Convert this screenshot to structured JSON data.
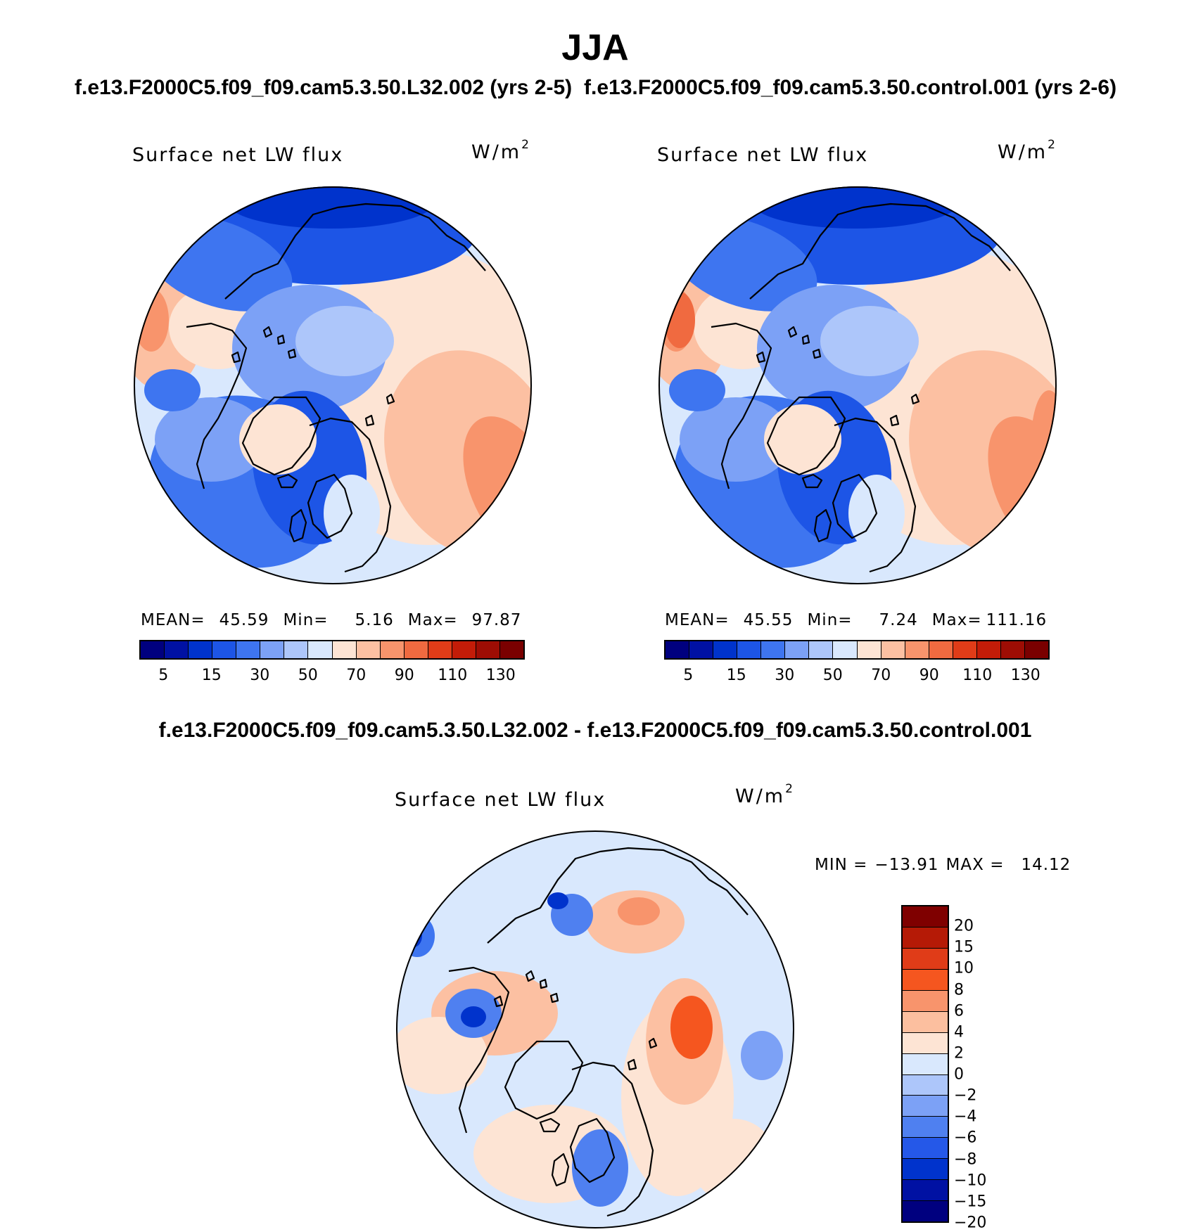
{
  "title": "JJA",
  "case_left_title": "f.e13.F2000C5.f09_f09.cam5.3.50.L32.002 (yrs 2-5)",
  "case_right_title": "f.e13.F2000C5.f09_f09.cam5.3.50.control.001 (yrs 2-6)",
  "diff_title": "f.e13.F2000C5.f09_f09.cam5.3.50.L32.002 - f.e13.F2000C5.f09_f09.cam5.3.50.control.001",
  "panels": {
    "left": {
      "variable": "Surface net LW flux",
      "units": "W/m",
      "units_exp": "2",
      "mean_label": "MEAN=",
      "mean": "45.59",
      "min_label": "Min=",
      "min": "5.16",
      "max_label": "Max=",
      "max": "97.87"
    },
    "right": {
      "variable": "Surface net LW flux",
      "units": "W/m",
      "units_exp": "2",
      "mean_label": "MEAN=",
      "mean": "45.55",
      "min_label": "Min=",
      "min": "7.24",
      "max_label": "Max=",
      "max": "111.16"
    },
    "diff": {
      "variable": "Surface net LW flux",
      "units": "W/m",
      "units_exp": "2",
      "min_label": "MIN =",
      "min": "−13.91",
      "max_label": "MAX =",
      "max": "14.12"
    }
  },
  "chart_data": [
    {
      "type": "heatmap",
      "title": "Surface net LW flux",
      "subtitle": "f.e13.F2000C5.f09_f09.cam5.3.50.L32.002 (yrs 2-5)",
      "units": "W/m2",
      "projection": "north polar stereographic",
      "mean": 45.59,
      "min": 5.16,
      "max": 97.87,
      "colorbar_labels": [
        "5",
        "15",
        "30",
        "50",
        "70",
        "90",
        "110",
        "130"
      ],
      "colorbar_colors": [
        "#00007f",
        "#0011a3",
        "#0033cc",
        "#1d55e6",
        "#3e75f0",
        "#7ca1f6",
        "#adc6fa",
        "#d9e8fd",
        "#fde4d4",
        "#fcc0a2",
        "#f8946c",
        "#f06a40",
        "#e03c18",
        "#c31c08",
        "#9e0d04",
        "#7a0000"
      ]
    },
    {
      "type": "heatmap",
      "title": "Surface net LW flux",
      "subtitle": "f.e13.F2000C5.f09_f09.cam5.3.50.control.001 (yrs 2-6)",
      "units": "W/m2",
      "projection": "north polar stereographic",
      "mean": 45.55,
      "min": 7.24,
      "max": 111.16,
      "colorbar_labels": [
        "5",
        "15",
        "30",
        "50",
        "70",
        "90",
        "110",
        "130"
      ],
      "colorbar_colors": [
        "#00007f",
        "#0011a3",
        "#0033cc",
        "#1d55e6",
        "#3e75f0",
        "#7ca1f6",
        "#adc6fa",
        "#d9e8fd",
        "#fde4d4",
        "#fcc0a2",
        "#f8946c",
        "#f06a40",
        "#e03c18",
        "#c31c08",
        "#9e0d04",
        "#7a0000"
      ]
    },
    {
      "type": "heatmap",
      "title": "Surface net LW flux",
      "subtitle": "f.e13.F2000C5.f09_f09.cam5.3.50.L32.002 - f.e13.F2000C5.f09_f09.cam5.3.50.control.001",
      "units": "W/m2",
      "projection": "north polar stereographic",
      "min": -13.91,
      "max": 14.12,
      "colorbar_labels": [
        "20",
        "15",
        "10",
        "8",
        "6",
        "4",
        "2",
        "0",
        "−2",
        "−4",
        "−6",
        "−8",
        "−10",
        "−15",
        "−20"
      ],
      "colorbar_colors": [
        "#7f0000",
        "#b51a06",
        "#e03c18",
        "#f5561f",
        "#f8946c",
        "#fcbf9f",
        "#fde4d4",
        "#d9e8fd",
        "#adc6fa",
        "#7ca1f6",
        "#4f80f0",
        "#2558e8",
        "#0033cc",
        "#0011a3",
        "#00007f"
      ]
    }
  ]
}
